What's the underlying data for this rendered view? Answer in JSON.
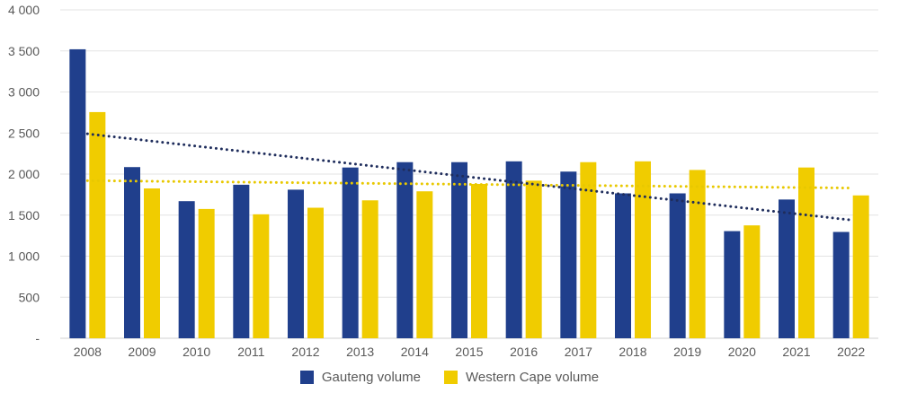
{
  "chart_data": {
    "type": "bar",
    "title": "",
    "xlabel": "",
    "ylabel": "",
    "ylim": [
      0,
      4000
    ],
    "yticks": [
      0,
      500,
      1000,
      1500,
      2000,
      2500,
      3000,
      3500,
      4000
    ],
    "ytick_labels": [
      "-",
      "500",
      "1 000",
      "1 500",
      "2 000",
      "2 500",
      "3 000",
      "3 500",
      "4 000"
    ],
    "grid": true,
    "legend_position": "bottom",
    "categories": [
      "2008",
      "2009",
      "2010",
      "2011",
      "2012",
      "2013",
      "2014",
      "2015",
      "2016",
      "2017",
      "2018",
      "2019",
      "2020",
      "2021",
      "2022"
    ],
    "series": [
      {
        "name": "Gauteng volume",
        "color": "#203f8c",
        "values": [
          3520,
          2085,
          1670,
          1870,
          1810,
          2080,
          2145,
          2145,
          2155,
          2030,
          1765,
          1765,
          1305,
          1690,
          1295
        ],
        "trendline": {
          "type": "linear",
          "start": 2490,
          "end": 1440,
          "color": "#1f2d5c",
          "style": "dotted"
        }
      },
      {
        "name": "Western Cape volume",
        "color": "#f0cc00",
        "values": [
          2755,
          1825,
          1575,
          1510,
          1590,
          1680,
          1790,
          1880,
          1920,
          2145,
          2155,
          2050,
          1375,
          2080,
          1740
        ],
        "trendline": {
          "type": "linear",
          "start": 1920,
          "end": 1830,
          "color": "#e8c800",
          "style": "dotted"
        }
      }
    ]
  }
}
